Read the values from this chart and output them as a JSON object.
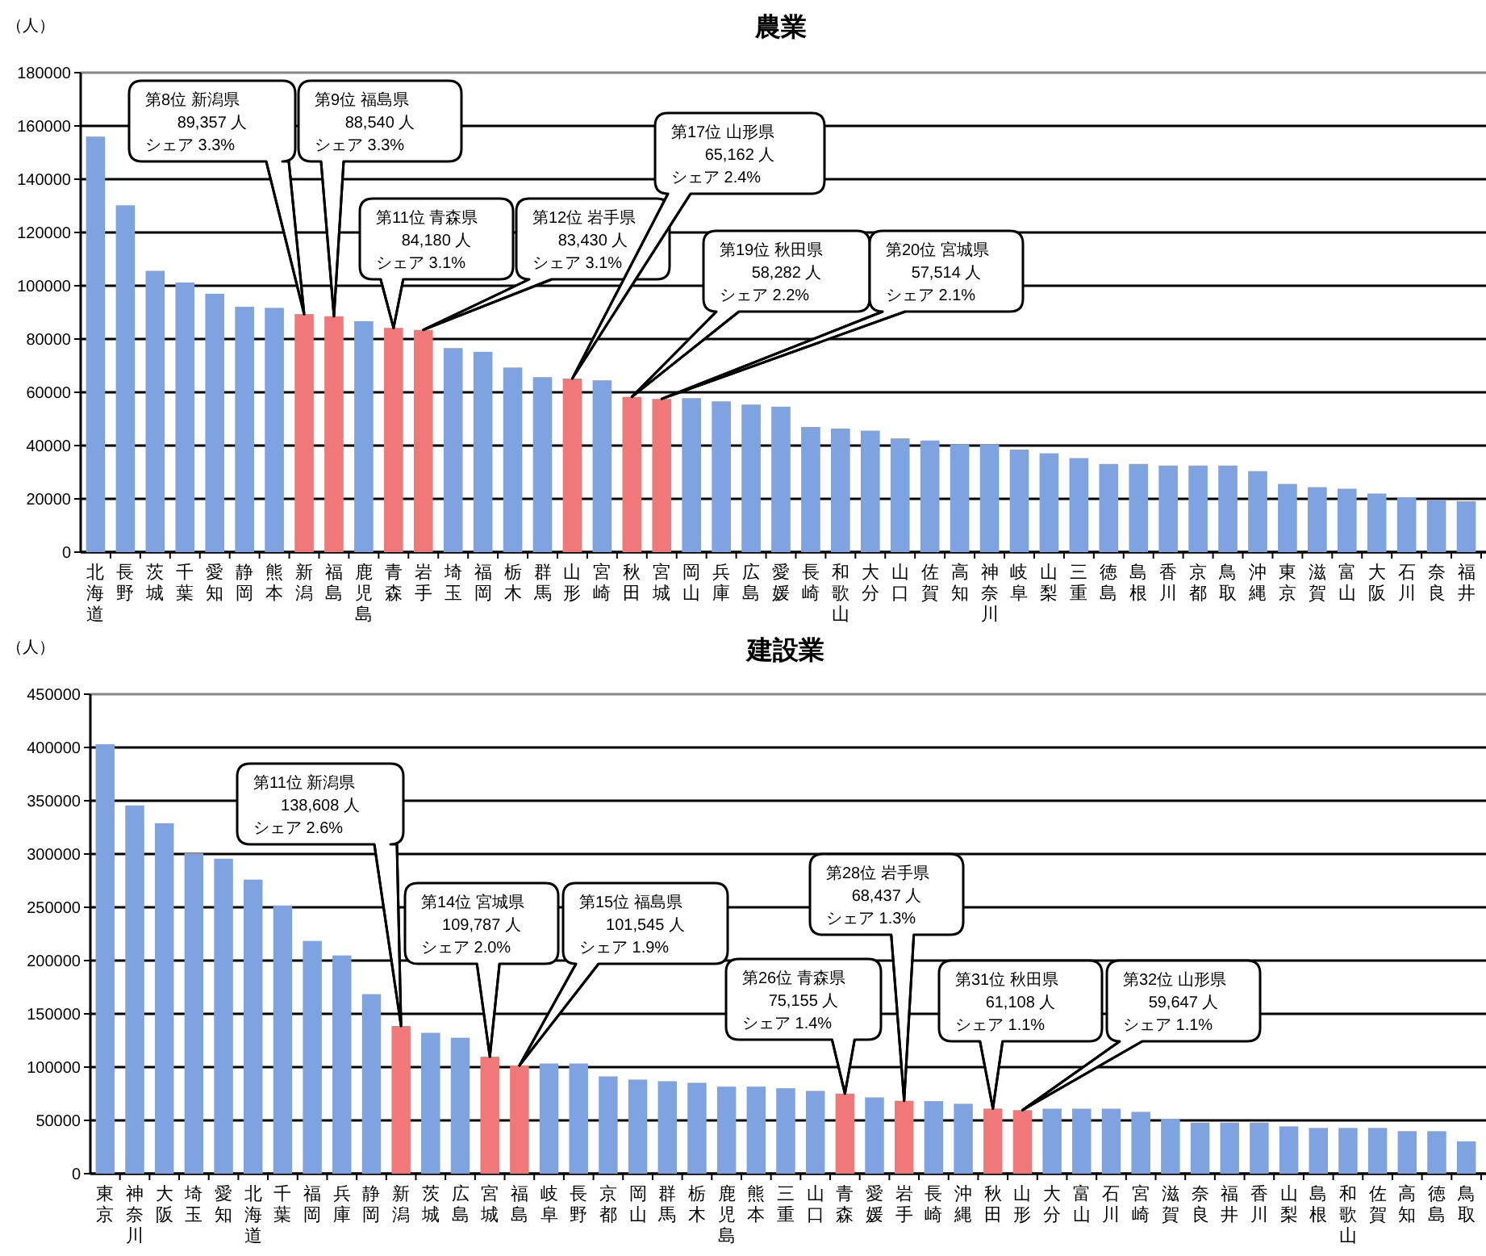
{
  "chart_data": [
    {
      "type": "bar",
      "title": "農業",
      "ylabel": "（人）",
      "categories": [
        "北海道",
        "長野",
        "茨城",
        "千葉",
        "愛知",
        "静岡",
        "熊本",
        "新潟",
        "福島",
        "鹿児島",
        "青森",
        "岩手",
        "埼玉",
        "福岡",
        "栃木",
        "群馬",
        "山形",
        "宮崎",
        "秋田",
        "宮城",
        "岡山",
        "兵庫",
        "広島",
        "愛媛",
        "長崎",
        "和歌山",
        "大分",
        "山口",
        "佐賀",
        "高知",
        "神奈川",
        "岐阜",
        "山梨",
        "三重",
        "徳島",
        "島根",
        "香川",
        "京都",
        "鳥取",
        "沖縄",
        "東京",
        "滋賀",
        "富山",
        "大阪",
        "石川",
        "奈良",
        "福井"
      ],
      "values": [
        156000,
        130200,
        105600,
        101200,
        97000,
        92100,
        91700,
        89357,
        88540,
        86700,
        84180,
        83430,
        76600,
        75200,
        69300,
        65700,
        65162,
        64500,
        58282,
        57514,
        57800,
        56600,
        55400,
        54600,
        47000,
        46400,
        45600,
        42700,
        41900,
        40500,
        40500,
        38500,
        37100,
        35300,
        33100,
        33100,
        32500,
        32500,
        32500,
        30400,
        25600,
        24400,
        23800,
        22000,
        20600,
        19600,
        19100
      ],
      "colors": [
        "#7fa3e0",
        "#7fa3e0",
        "#7fa3e0",
        "#7fa3e0",
        "#7fa3e0",
        "#7fa3e0",
        "#7fa3e0",
        "#f07878",
        "#f07878",
        "#7fa3e0",
        "#f07878",
        "#f07878",
        "#7fa3e0",
        "#7fa3e0",
        "#7fa3e0",
        "#7fa3e0",
        "#f07878",
        "#7fa3e0",
        "#f07878",
        "#f07878",
        "#7fa3e0",
        "#7fa3e0",
        "#7fa3e0",
        "#7fa3e0",
        "#7fa3e0",
        "#7fa3e0",
        "#7fa3e0",
        "#7fa3e0",
        "#7fa3e0",
        "#7fa3e0",
        "#7fa3e0",
        "#7fa3e0",
        "#7fa3e0",
        "#7fa3e0",
        "#7fa3e0",
        "#7fa3e0",
        "#7fa3e0",
        "#7fa3e0",
        "#7fa3e0",
        "#7fa3e0",
        "#7fa3e0",
        "#7fa3e0",
        "#7fa3e0",
        "#7fa3e0",
        "#7fa3e0",
        "#7fa3e0",
        "#7fa3e0"
      ],
      "ylim": [
        0,
        180000
      ],
      "yticks": [
        0,
        20000,
        40000,
        60000,
        80000,
        100000,
        120000,
        140000,
        160000,
        180000
      ],
      "grid": "y",
      "annotations": [
        "第8位 新潟県",
        "89,357 人",
        "シェア 3.3%",
        "第9位 福島県",
        "88,540 人",
        "シェア 3.3%",
        "第11位 青森県",
        "84,180 人",
        "シェア 3.1%",
        "第12位 岩手県",
        "83,430 人",
        "シェア 3.1%",
        "第17位 山形県",
        "65,162 人",
        "シェア 2.4%",
        "第19位 秋田県",
        "58,282 人",
        "シェア 2.2%",
        "第20位 宮城県",
        "57,514 人",
        "シェア 2.1%"
      ]
    },
    {
      "type": "bar",
      "title": "建設業",
      "ylabel": "（人）",
      "categories": [
        "東京",
        "神奈川",
        "大阪",
        "埼玉",
        "愛知",
        "北海道",
        "千葉",
        "福岡",
        "兵庫",
        "静岡",
        "新潟",
        "茨城",
        "広島",
        "宮城",
        "福島",
        "岐阜",
        "長野",
        "京都",
        "岡山",
        "群馬",
        "栃木",
        "鹿児島",
        "熊本",
        "三重",
        "山口",
        "青森",
        "愛媛",
        "岩手",
        "長崎",
        "沖縄",
        "秋田",
        "山形",
        "大分",
        "富山",
        "石川",
        "宮崎",
        "滋賀",
        "奈良",
        "福井",
        "香川",
        "山梨",
        "島根",
        "和歌山",
        "佐賀",
        "高知",
        "徳島",
        "鳥取"
      ],
      "values": [
        403000,
        345600,
        328900,
        300700,
        295600,
        276000,
        251700,
        218400,
        204800,
        168500,
        138608,
        132200,
        127600,
        109787,
        101545,
        103400,
        103400,
        91300,
        88300,
        86800,
        85300,
        81700,
        81700,
        80200,
        77700,
        75155,
        71600,
        68437,
        68100,
        65600,
        61108,
        59647,
        61000,
        61000,
        61000,
        58000,
        51500,
        47900,
        47900,
        47900,
        44400,
        42900,
        42900,
        42900,
        39900,
        39900,
        30300
      ],
      "colors": [
        "#7fa3e0",
        "#7fa3e0",
        "#7fa3e0",
        "#7fa3e0",
        "#7fa3e0",
        "#7fa3e0",
        "#7fa3e0",
        "#7fa3e0",
        "#7fa3e0",
        "#7fa3e0",
        "#f07878",
        "#7fa3e0",
        "#7fa3e0",
        "#f07878",
        "#f07878",
        "#7fa3e0",
        "#7fa3e0",
        "#7fa3e0",
        "#7fa3e0",
        "#7fa3e0",
        "#7fa3e0",
        "#7fa3e0",
        "#7fa3e0",
        "#7fa3e0",
        "#7fa3e0",
        "#f07878",
        "#7fa3e0",
        "#f07878",
        "#7fa3e0",
        "#7fa3e0",
        "#f07878",
        "#f07878",
        "#7fa3e0",
        "#7fa3e0",
        "#7fa3e0",
        "#7fa3e0",
        "#7fa3e0",
        "#7fa3e0",
        "#7fa3e0",
        "#7fa3e0",
        "#7fa3e0",
        "#7fa3e0",
        "#7fa3e0",
        "#7fa3e0",
        "#7fa3e0",
        "#7fa3e0",
        "#7fa3e0"
      ],
      "ylim": [
        0,
        450000
      ],
      "yticks": [
        0,
        50000,
        100000,
        150000,
        200000,
        250000,
        300000,
        350000,
        400000,
        450000
      ],
      "grid": "y",
      "annotations": [
        "第11位 新潟県",
        "138,608 人",
        "シェア 2.6%",
        "第14位 宮城県",
        "109,787 人",
        "シェア 2.0%",
        "第15位 福島県",
        "101,545 人",
        "シェア 1.9%",
        "第26位 青森県",
        "75,155 人",
        "シェア 1.4%",
        "第28位 岩手県",
        "68,437 人",
        "シェア 1.3%",
        "第31位 秋田県",
        "61,108 人",
        "シェア 1.1%",
        "第32位 山形県",
        "59,647 人",
        "シェア 1.1%"
      ]
    }
  ]
}
